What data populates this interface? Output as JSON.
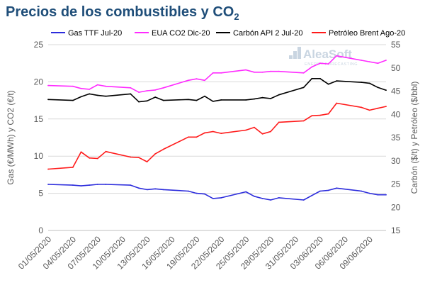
{
  "title": {
    "text": "Precios de los combustibles y CO",
    "sub": "2"
  },
  "watermark": {
    "brand": "AleaSoft",
    "tagline": "ENERGY FORECASTING"
  },
  "chart_data": {
    "type": "line",
    "x": [
      "01/05/2020",
      "04/05/2020",
      "05/05/2020",
      "06/05/2020",
      "07/05/2020",
      "08/05/2020",
      "11/05/2020",
      "12/05/2020",
      "13/05/2020",
      "14/05/2020",
      "15/05/2020",
      "18/05/2020",
      "19/05/2020",
      "20/05/2020",
      "21/05/2020",
      "22/05/2020",
      "25/05/2020",
      "26/05/2020",
      "27/05/2020",
      "28/05/2020",
      "29/05/2020",
      "01/06/2020",
      "02/06/2020",
      "03/06/2020",
      "04/06/2020",
      "05/06/2020",
      "08/06/2020",
      "09/06/2020",
      "10/06/2020",
      "11/06/2020"
    ],
    "x_tick_labels": [
      "01/05/2020",
      "04/05/2020",
      "07/05/2020",
      "10/05/2020",
      "13/05/2020",
      "16/05/2020",
      "19/05/2020",
      "22/05/2020",
      "25/05/2020",
      "28/05/2020",
      "31/05/2020",
      "03/06/2020",
      "06/06/2020",
      "09/06/2020"
    ],
    "x_range": [
      "01/05/2020",
      "11/06/2020"
    ],
    "y_left": {
      "label": "Gas (€/MWh) y CO2 (€/t)",
      "range": [
        0,
        25
      ],
      "ticks": [
        "0",
        "5",
        "10",
        "15",
        "20",
        "25"
      ]
    },
    "y_right": {
      "label": "Carbón ($/t) y Petróleo ($/bbl)",
      "range": [
        15,
        55
      ],
      "ticks": [
        "15",
        "20",
        "25",
        "30",
        "35",
        "40",
        "45",
        "50",
        "55"
      ]
    },
    "grid": true,
    "legend": "top",
    "series": [
      {
        "name": "Gas TTF Jul-20",
        "axis": "left",
        "color": "#2c2cdc",
        "values": [
          6.2,
          6.1,
          6.0,
          6.1,
          6.2,
          6.2,
          6.1,
          5.7,
          5.5,
          5.6,
          5.5,
          5.3,
          5.0,
          4.9,
          4.3,
          4.4,
          5.2,
          4.6,
          4.3,
          4.1,
          4.4,
          4.1,
          4.7,
          5.3,
          5.4,
          5.7,
          5.3,
          5.0,
          4.8,
          4.8
        ]
      },
      {
        "name": "EUA CO2 Dic-20",
        "axis": "left",
        "color": "#ff2bff",
        "values": [
          19.5,
          19.4,
          19.1,
          19.0,
          19.6,
          19.4,
          19.2,
          18.6,
          18.8,
          18.9,
          19.2,
          20.2,
          20.4,
          20.2,
          21.2,
          21.2,
          21.6,
          21.3,
          21.3,
          21.4,
          21.4,
          21.2,
          22.0,
          22.5,
          22.4,
          23.5,
          22.9,
          22.7,
          22.5,
          22.9
        ]
      },
      {
        "name": "Carbón API 2 Jul-20",
        "axis": "right",
        "color": "#000000",
        "values": [
          43.2,
          43.0,
          43.8,
          44.4,
          44.1,
          43.9,
          44.4,
          42.7,
          42.9,
          43.7,
          43.0,
          43.2,
          43.0,
          43.9,
          42.8,
          43.1,
          43.1,
          43.3,
          43.6,
          43.4,
          44.2,
          45.8,
          47.7,
          47.7,
          46.5,
          47.2,
          46.9,
          46.7,
          45.8,
          45.2
        ]
      },
      {
        "name": "Petróleo Brent Ago-20",
        "axis": "right",
        "color": "#ff1a1a",
        "values": [
          28.2,
          28.6,
          31.9,
          30.6,
          30.5,
          32.0,
          30.8,
          30.7,
          29.8,
          31.5,
          32.5,
          35.1,
          35.1,
          36.0,
          36.3,
          35.9,
          36.6,
          37.2,
          35.8,
          36.3,
          38.3,
          38.6,
          39.7,
          39.8,
          40.1,
          42.4,
          41.5,
          40.9,
          41.3,
          41.7
        ]
      }
    ]
  }
}
